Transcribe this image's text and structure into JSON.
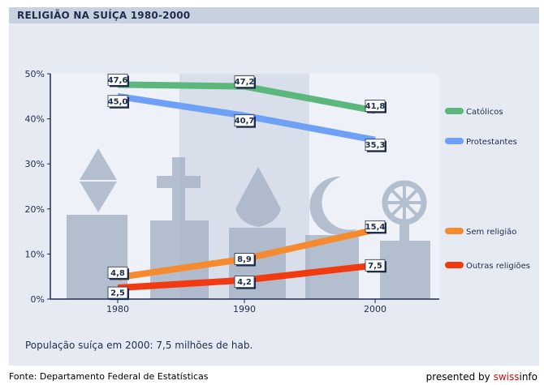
{
  "header": {
    "title": "RELIGIÃO NA SUÍÇA 1980-2000"
  },
  "chart_data": {
    "type": "line",
    "title": "RELIGIÃO NA SUÍÇA 1980-2000",
    "categories": [
      "1980",
      "1990",
      "2000"
    ],
    "ylim": [
      0,
      50
    ],
    "yticks": [
      "0%",
      "10%",
      "20%",
      "30%",
      "40%",
      "50%"
    ],
    "series": [
      {
        "name": "Católicos",
        "values": [
          47.6,
          47.2,
          41.8
        ],
        "labels": [
          "47,6",
          "47,2",
          "41,8"
        ],
        "color": "#5bb77c"
      },
      {
        "name": "Protestantes",
        "values": [
          45.0,
          40.7,
          35.3
        ],
        "labels": [
          "45,0",
          "40,7",
          "35,3"
        ],
        "color": "#6ea0f5"
      },
      {
        "name": "Sem religião",
        "values": [
          4.8,
          8.9,
          15.4
        ],
        "labels": [
          "4,8",
          "8,9",
          "15,4"
        ],
        "color": "#f58a2e"
      },
      {
        "name": "Outras religiões",
        "values": [
          2.5,
          4.2,
          7.5
        ],
        "labels": [
          "2,5",
          "4,2",
          "7,5"
        ],
        "color": "#f23a10"
      }
    ],
    "legend": "right"
  },
  "note": "População suíça em 2000: 7,5 milhões de hab.",
  "footer": {
    "source": "Fonte: Departamento Federal de Estatísticas",
    "presented": "presented by ",
    "brand": "swiss",
    "brand2": "info"
  }
}
